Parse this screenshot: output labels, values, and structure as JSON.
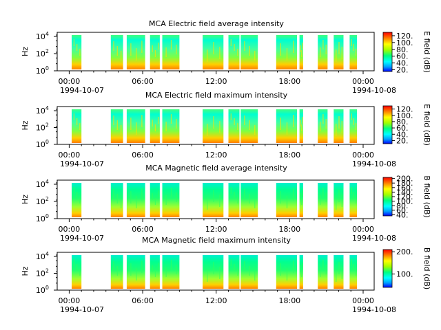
{
  "figure": {
    "x_tick_labels": [
      "00:00",
      "06:00",
      "12:00",
      "18:00",
      "00:00"
    ],
    "x_start_date": "1994-10-07",
    "x_end_date": "1994-10-08",
    "y_label": "Hz"
  },
  "chart_data": [
    {
      "type": "heatmap",
      "title": "MCA  Electric field average intensity",
      "x_range_hours": [
        0,
        24
      ],
      "ylabel": "Hz",
      "y_ticks": [
        {
          "base": "10",
          "exp": "0"
        },
        {
          "base": "10",
          "exp": "2"
        },
        {
          "base": "10",
          "exp": "4"
        }
      ],
      "y_scale": "log",
      "colorbar": {
        "label": "E field (dB)",
        "ticks": [
          "20.",
          "40.",
          "60.",
          "80.",
          "100.",
          "120."
        ],
        "range": [
          15,
          130
        ],
        "colormap": "rainbow"
      },
      "data_segments_hours": [
        [
          0.2,
          1.0
        ],
        [
          3.4,
          4.4
        ],
        [
          4.7,
          6.2
        ],
        [
          6.6,
          7.4
        ],
        [
          7.6,
          9.0
        ],
        [
          10.9,
          12.6
        ],
        [
          13.0,
          13.9
        ],
        [
          14.0,
          15.4
        ],
        [
          16.9,
          18.6
        ],
        [
          18.8,
          19.1
        ],
        [
          20.3,
          21.1
        ],
        [
          21.6,
          22.4
        ],
        [
          22.9,
          23.5
        ]
      ],
      "grid": false
    },
    {
      "type": "heatmap",
      "title": "MCA  Electric field maximum intensity",
      "x_range_hours": [
        0,
        24
      ],
      "ylabel": "Hz",
      "y_ticks": [
        {
          "base": "10",
          "exp": "0"
        },
        {
          "base": "10",
          "exp": "2"
        },
        {
          "base": "10",
          "exp": "4"
        }
      ],
      "y_scale": "log",
      "colorbar": {
        "label": "E field (dB)",
        "ticks": [
          "20.",
          "40.",
          "60.",
          "80.",
          "100.",
          "120."
        ],
        "range": [
          10,
          130
        ],
        "colormap": "rainbow"
      },
      "data_segments_hours": [
        [
          0.2,
          1.0
        ],
        [
          3.4,
          4.4
        ],
        [
          4.7,
          6.2
        ],
        [
          6.6,
          7.4
        ],
        [
          7.6,
          9.0
        ],
        [
          10.9,
          12.6
        ],
        [
          13.0,
          13.9
        ],
        [
          14.0,
          15.4
        ],
        [
          16.9,
          18.6
        ],
        [
          18.8,
          19.1
        ],
        [
          20.3,
          21.1
        ],
        [
          21.6,
          22.4
        ],
        [
          22.9,
          23.5
        ]
      ],
      "grid": false
    },
    {
      "type": "heatmap",
      "title": "MCA  Magnetic field average intensity",
      "x_range_hours": [
        0,
        24
      ],
      "ylabel": "Hz",
      "y_ticks": [
        {
          "base": "10",
          "exp": "0"
        },
        {
          "base": "10",
          "exp": "2"
        },
        {
          "base": "10",
          "exp": "4"
        }
      ],
      "y_scale": "log",
      "colorbar": {
        "label": "B field (dB)",
        "ticks": [
          "40.",
          "60.",
          "80.",
          "100.",
          "120.",
          "140.",
          "160.",
          "180.",
          "200."
        ],
        "range": [
          35,
          205
        ],
        "colormap": "rainbow"
      },
      "data_segments_hours": [
        [
          0.2,
          1.0
        ],
        [
          3.4,
          4.4
        ],
        [
          4.7,
          6.2
        ],
        [
          6.6,
          7.4
        ],
        [
          7.6,
          9.0
        ],
        [
          10.9,
          12.6
        ],
        [
          13.0,
          13.9
        ],
        [
          14.0,
          15.4
        ],
        [
          16.9,
          18.6
        ],
        [
          18.8,
          19.1
        ],
        [
          20.3,
          21.1
        ],
        [
          21.6,
          22.4
        ],
        [
          22.9,
          23.5
        ]
      ],
      "grid": false
    },
    {
      "type": "heatmap",
      "title": "MCA  Magnetic field maximum intensity",
      "x_range_hours": [
        0,
        24
      ],
      "ylabel": "Hz",
      "y_ticks": [
        {
          "base": "10",
          "exp": "0"
        },
        {
          "base": "10",
          "exp": "2"
        },
        {
          "base": "10",
          "exp": "4"
        }
      ],
      "y_scale": "log",
      "colorbar": {
        "label": "B field (dB)",
        "ticks": [
          "100.",
          "200."
        ],
        "range": [
          40,
          210
        ],
        "colormap": "rainbow"
      },
      "data_segments_hours": [
        [
          0.2,
          1.0
        ],
        [
          3.4,
          4.4
        ],
        [
          4.7,
          6.2
        ],
        [
          6.6,
          7.4
        ],
        [
          7.6,
          9.0
        ],
        [
          10.9,
          12.6
        ],
        [
          13.0,
          13.9
        ],
        [
          14.0,
          15.4
        ],
        [
          16.9,
          18.6
        ],
        [
          18.8,
          19.1
        ],
        [
          20.3,
          21.1
        ],
        [
          21.6,
          22.4
        ],
        [
          22.9,
          23.5
        ]
      ],
      "grid": false
    }
  ]
}
